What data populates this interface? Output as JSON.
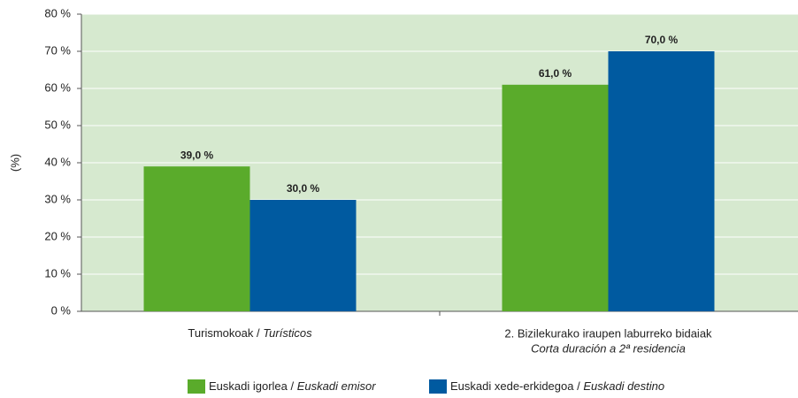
{
  "chart_data": {
    "type": "bar",
    "ylabel": "(%)",
    "categories": [
      [
        "Turismokoak / ",
        "Turísticos"
      ],
      [
        "2. Bizilekurako iraupen laburreko bidaiak",
        "Corta duración a 2ª residencia"
      ]
    ],
    "series": [
      {
        "name": [
          "Euskadi igorlea / ",
          "Euskadi emisor"
        ],
        "color": "#5aab2b",
        "values": [
          39,
          61
        ],
        "value_labels": [
          "39,0 %",
          "61,0 %"
        ]
      },
      {
        "name": [
          "Euskadi xede-erkidegoa / ",
          "Euskadi destino"
        ],
        "color": "#005aa0",
        "values": [
          30,
          70
        ],
        "value_labels": [
          "30,0 %",
          "70,0 %"
        ]
      }
    ],
    "ylim": [
      0,
      80
    ],
    "yticks": [
      {
        "value": 0,
        "label": "0 %"
      },
      {
        "value": 10,
        "label": "10 %"
      },
      {
        "value": 20,
        "label": "20 %"
      },
      {
        "value": 30,
        "label": "30 %"
      },
      {
        "value": 40,
        "label": "40 %"
      },
      {
        "value": 50,
        "label": "50 %"
      },
      {
        "value": 60,
        "label": "60 %"
      },
      {
        "value": 70,
        "label": "70 %"
      },
      {
        "value": 80,
        "label": "80 %"
      }
    ],
    "grid": true,
    "background": "#d6e9cf"
  }
}
